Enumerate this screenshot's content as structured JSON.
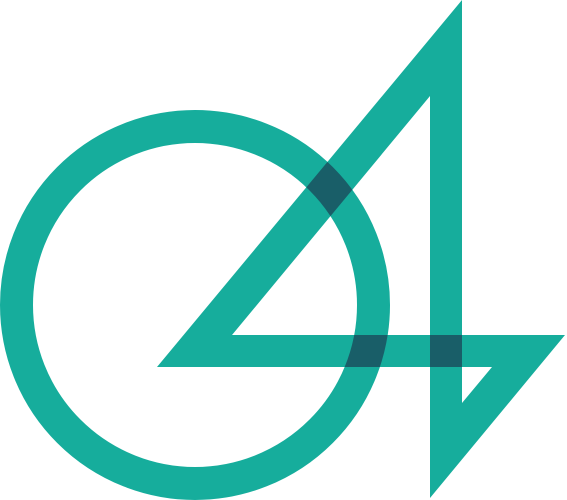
{
  "logo": {
    "primary_color": "#16AD9C",
    "overlap_color": "#195E68",
    "background_color": "#FFFFFF"
  }
}
